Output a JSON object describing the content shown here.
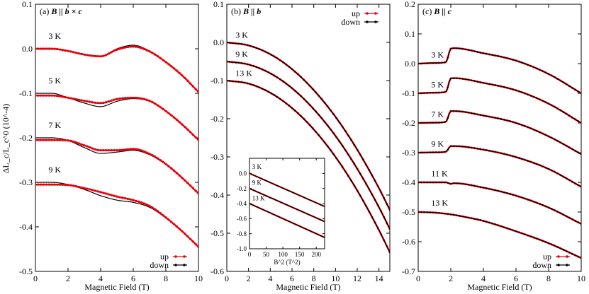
{
  "figure": {
    "ylabel": "ΔL_c/L_c^0 (10^-4)",
    "xlabel": "Magnetic Field (T)"
  },
  "chart_data": [
    {
      "type": "line",
      "panel_label": "(a)",
      "title": "B || b × c",
      "xlabel": "Magnetic Field (T)",
      "ylabel": "ΔL_c/L_c^0 (10^-4)",
      "xlim": [
        0,
        10
      ],
      "ylim": [
        -0.5,
        0.1
      ],
      "xticks": [
        0,
        2,
        4,
        6,
        8,
        10
      ],
      "yticks": [
        -0.5,
        -0.4,
        -0.3,
        -0.2,
        -0.1,
        0.0,
        0.1
      ],
      "legend": {
        "position": "bottom-right",
        "entries": [
          "up",
          "down"
        ]
      },
      "curve_labels": [
        {
          "text": "3 K",
          "x": 0.8,
          "y": 0.022
        },
        {
          "text": "5 K",
          "x": 0.8,
          "y": -0.078
        },
        {
          "text": "7 K",
          "x": 0.8,
          "y": -0.178
        },
        {
          "text": "9 K",
          "x": 0.8,
          "y": -0.278
        }
      ],
      "series": [
        {
          "temperature": "3 K",
          "direction": "down",
          "x": [
            0,
            1,
            2,
            3,
            4,
            5,
            6,
            7,
            8,
            9,
            10
          ],
          "y": [
            0.0,
            0.0,
            -0.005,
            -0.014,
            -0.018,
            0.0,
            0.008,
            -0.005,
            -0.03,
            -0.06,
            -0.097
          ]
        },
        {
          "temperature": "3 K",
          "direction": "up",
          "x": [
            0,
            1,
            2,
            3,
            4,
            5,
            6,
            7,
            8,
            9,
            10
          ],
          "y": [
            0.0,
            0.0,
            -0.005,
            -0.013,
            -0.017,
            -0.002,
            0.005,
            -0.006,
            -0.03,
            -0.06,
            -0.097
          ]
        },
        {
          "temperature": "5 K",
          "direction": "down",
          "x": [
            0,
            1,
            2,
            3,
            4,
            5,
            6,
            7,
            8,
            9,
            10
          ],
          "y": [
            -0.1,
            -0.1,
            -0.11,
            -0.122,
            -0.13,
            -0.118,
            -0.112,
            -0.118,
            -0.14,
            -0.17,
            -0.205
          ]
        },
        {
          "temperature": "5 K",
          "direction": "up",
          "x": [
            0,
            1,
            2,
            3,
            4,
            5,
            6,
            7,
            8,
            9,
            10
          ],
          "y": [
            -0.105,
            -0.105,
            -0.11,
            -0.117,
            -0.122,
            -0.113,
            -0.11,
            -0.117,
            -0.14,
            -0.17,
            -0.205
          ]
        },
        {
          "temperature": "7 K",
          "direction": "down",
          "x": [
            0,
            1,
            2,
            3,
            4,
            5,
            6,
            7,
            8,
            9,
            10
          ],
          "y": [
            -0.2,
            -0.2,
            -0.206,
            -0.222,
            -0.235,
            -0.232,
            -0.228,
            -0.238,
            -0.26,
            -0.29,
            -0.325
          ]
        },
        {
          "temperature": "7 K",
          "direction": "up",
          "x": [
            0,
            1,
            2,
            3,
            4,
            5,
            6,
            7,
            8,
            9,
            10
          ],
          "y": [
            -0.205,
            -0.205,
            -0.206,
            -0.217,
            -0.228,
            -0.228,
            -0.225,
            -0.236,
            -0.259,
            -0.29,
            -0.325
          ]
        },
        {
          "temperature": "9 K",
          "direction": "down",
          "x": [
            0,
            1,
            2,
            3,
            4,
            5,
            6,
            7,
            8,
            9,
            10
          ],
          "y": [
            -0.3,
            -0.3,
            -0.305,
            -0.316,
            -0.33,
            -0.34,
            -0.345,
            -0.356,
            -0.38,
            -0.41,
            -0.445
          ]
        },
        {
          "temperature": "9 K",
          "direction": "up",
          "x": [
            0,
            1,
            2,
            3,
            4,
            5,
            6,
            7,
            8,
            9,
            10
          ],
          "y": [
            -0.305,
            -0.305,
            -0.306,
            -0.313,
            -0.322,
            -0.332,
            -0.34,
            -0.353,
            -0.379,
            -0.41,
            -0.445
          ]
        }
      ]
    },
    {
      "type": "line",
      "panel_label": "(b)",
      "title": "B || b",
      "xlabel": "Magnetic Field (T)",
      "xlim": [
        0,
        15
      ],
      "ylim": [
        -0.6,
        0.1
      ],
      "xticks": [
        0,
        2,
        4,
        6,
        8,
        10,
        12,
        14
      ],
      "yticks": [
        -0.6,
        -0.5,
        -0.4,
        -0.3,
        -0.2,
        -0.1,
        0.0,
        0.1
      ],
      "legend": {
        "position": "top-right",
        "entries": [
          "up",
          "down"
        ]
      },
      "curve_labels": [
        {
          "text": "3 K",
          "x": 0.8,
          "y": 0.012
        },
        {
          "text": "9 K",
          "x": 0.8,
          "y": -0.038
        },
        {
          "text": "13 K",
          "x": 0.8,
          "y": -0.088
        }
      ],
      "series": [
        {
          "temperature": "3 K",
          "coefficient": -0.00195,
          "offset": 0.0,
          "x": [
            0,
            2,
            4,
            6,
            8,
            10,
            12,
            14,
            15
          ],
          "y": [
            0.0,
            -0.008,
            -0.031,
            -0.07,
            -0.125,
            -0.195,
            -0.281,
            -0.382,
            -0.439
          ]
        },
        {
          "temperature": "9 K",
          "coefficient": -0.00195,
          "offset": -0.05,
          "x": [
            0,
            2,
            4,
            6,
            8,
            10,
            12,
            14,
            15
          ],
          "y": [
            -0.05,
            -0.058,
            -0.081,
            -0.12,
            -0.175,
            -0.245,
            -0.331,
            -0.432,
            -0.489
          ]
        },
        {
          "temperature": "13 K",
          "coefficient": -0.002,
          "offset": -0.1,
          "x": [
            0,
            2,
            4,
            6,
            8,
            10,
            12,
            14,
            15
          ],
          "y": [
            -0.1,
            -0.108,
            -0.132,
            -0.172,
            -0.228,
            -0.3,
            -0.388,
            -0.492,
            -0.55
          ]
        }
      ],
      "inset": {
        "xlabel": "B^2 (T^2)",
        "xlim": [
          0,
          225
        ],
        "ylim": [
          -1.0,
          0.2
        ],
        "xticks": [
          0,
          50,
          100,
          150,
          200
        ],
        "yticks": [
          -1.0,
          -0.8,
          -0.6,
          -0.4,
          -0.2,
          0.0
        ],
        "curve_labels": [
          {
            "text": "3 K",
            "x": 8,
            "y": 0.06
          },
          {
            "text": "9 K",
            "x": 8,
            "y": -0.15
          },
          {
            "text": "13 K",
            "x": 8,
            "y": -0.36
          }
        ],
        "series": [
          {
            "temperature": "3 K",
            "x": [
              0,
              225
            ],
            "y": [
              0.0,
              -0.439
            ]
          },
          {
            "temperature": "9 K",
            "x": [
              0,
              225
            ],
            "y": [
              -0.2,
              -0.639
            ]
          },
          {
            "temperature": "13 K",
            "x": [
              0,
              225
            ],
            "y": [
              -0.4,
              -0.85
            ]
          }
        ]
      }
    },
    {
      "type": "line",
      "panel_label": "(c)",
      "title": "B || c",
      "xlabel": "Magnetic Field (T)",
      "xlim": [
        0,
        10
      ],
      "ylim": [
        -0.7,
        0.2
      ],
      "xticks": [
        0,
        2,
        4,
        6,
        8,
        10
      ],
      "yticks": [
        -0.7,
        -0.6,
        -0.5,
        -0.4,
        -0.3,
        -0.2,
        -0.1,
        0.0,
        0.1,
        0.2
      ],
      "legend": {
        "position": "bottom-right",
        "entries": [
          "up",
          "down"
        ]
      },
      "curve_labels": [
        {
          "text": "3 K",
          "x": 0.8,
          "y": 0.02
        },
        {
          "text": "5 K",
          "x": 0.8,
          "y": -0.08
        },
        {
          "text": "7 K",
          "x": 0.8,
          "y": -0.18
        },
        {
          "text": "9 K",
          "x": 0.8,
          "y": -0.28
        },
        {
          "text": "11 K",
          "x": 0.8,
          "y": -0.38
        },
        {
          "text": "13 K",
          "x": 0.8,
          "y": -0.478
        }
      ],
      "series": [
        {
          "temperature": "3 K",
          "x": [
            0,
            1,
            1.7,
            2.0,
            2.2,
            4,
            6,
            8,
            10
          ],
          "y": [
            0.0,
            0.002,
            0.005,
            0.05,
            0.052,
            0.035,
            0.01,
            -0.035,
            -0.1
          ]
        },
        {
          "temperature": "5 K",
          "x": [
            0,
            1,
            1.7,
            2.0,
            2.2,
            4,
            6,
            8,
            10
          ],
          "y": [
            -0.1,
            -0.098,
            -0.095,
            -0.05,
            -0.049,
            -0.065,
            -0.09,
            -0.135,
            -0.2
          ]
        },
        {
          "temperature": "7 K",
          "x": [
            0,
            1,
            1.7,
            2.0,
            2.2,
            4,
            6,
            8,
            10
          ],
          "y": [
            -0.2,
            -0.199,
            -0.196,
            -0.16,
            -0.16,
            -0.175,
            -0.2,
            -0.245,
            -0.305
          ]
        },
        {
          "temperature": "9 K",
          "x": [
            0,
            1,
            1.7,
            2.0,
            2.2,
            4,
            6,
            8,
            10
          ],
          "y": [
            -0.3,
            -0.299,
            -0.297,
            -0.278,
            -0.278,
            -0.29,
            -0.315,
            -0.355,
            -0.415
          ]
        },
        {
          "temperature": "11 K",
          "x": [
            0,
            1,
            1.7,
            2.0,
            2.2,
            4,
            6,
            8,
            10
          ],
          "y": [
            -0.4,
            -0.4,
            -0.4,
            -0.405,
            -0.403,
            -0.418,
            -0.445,
            -0.485,
            -0.54
          ]
        },
        {
          "temperature": "13 K",
          "x": [
            0,
            1,
            2,
            3,
            4,
            6,
            8,
            10
          ],
          "y": [
            -0.5,
            -0.502,
            -0.508,
            -0.518,
            -0.53,
            -0.565,
            -0.605,
            -0.655
          ]
        }
      ]
    }
  ],
  "colors": {
    "up": "#e8000b",
    "down": "#000000"
  }
}
